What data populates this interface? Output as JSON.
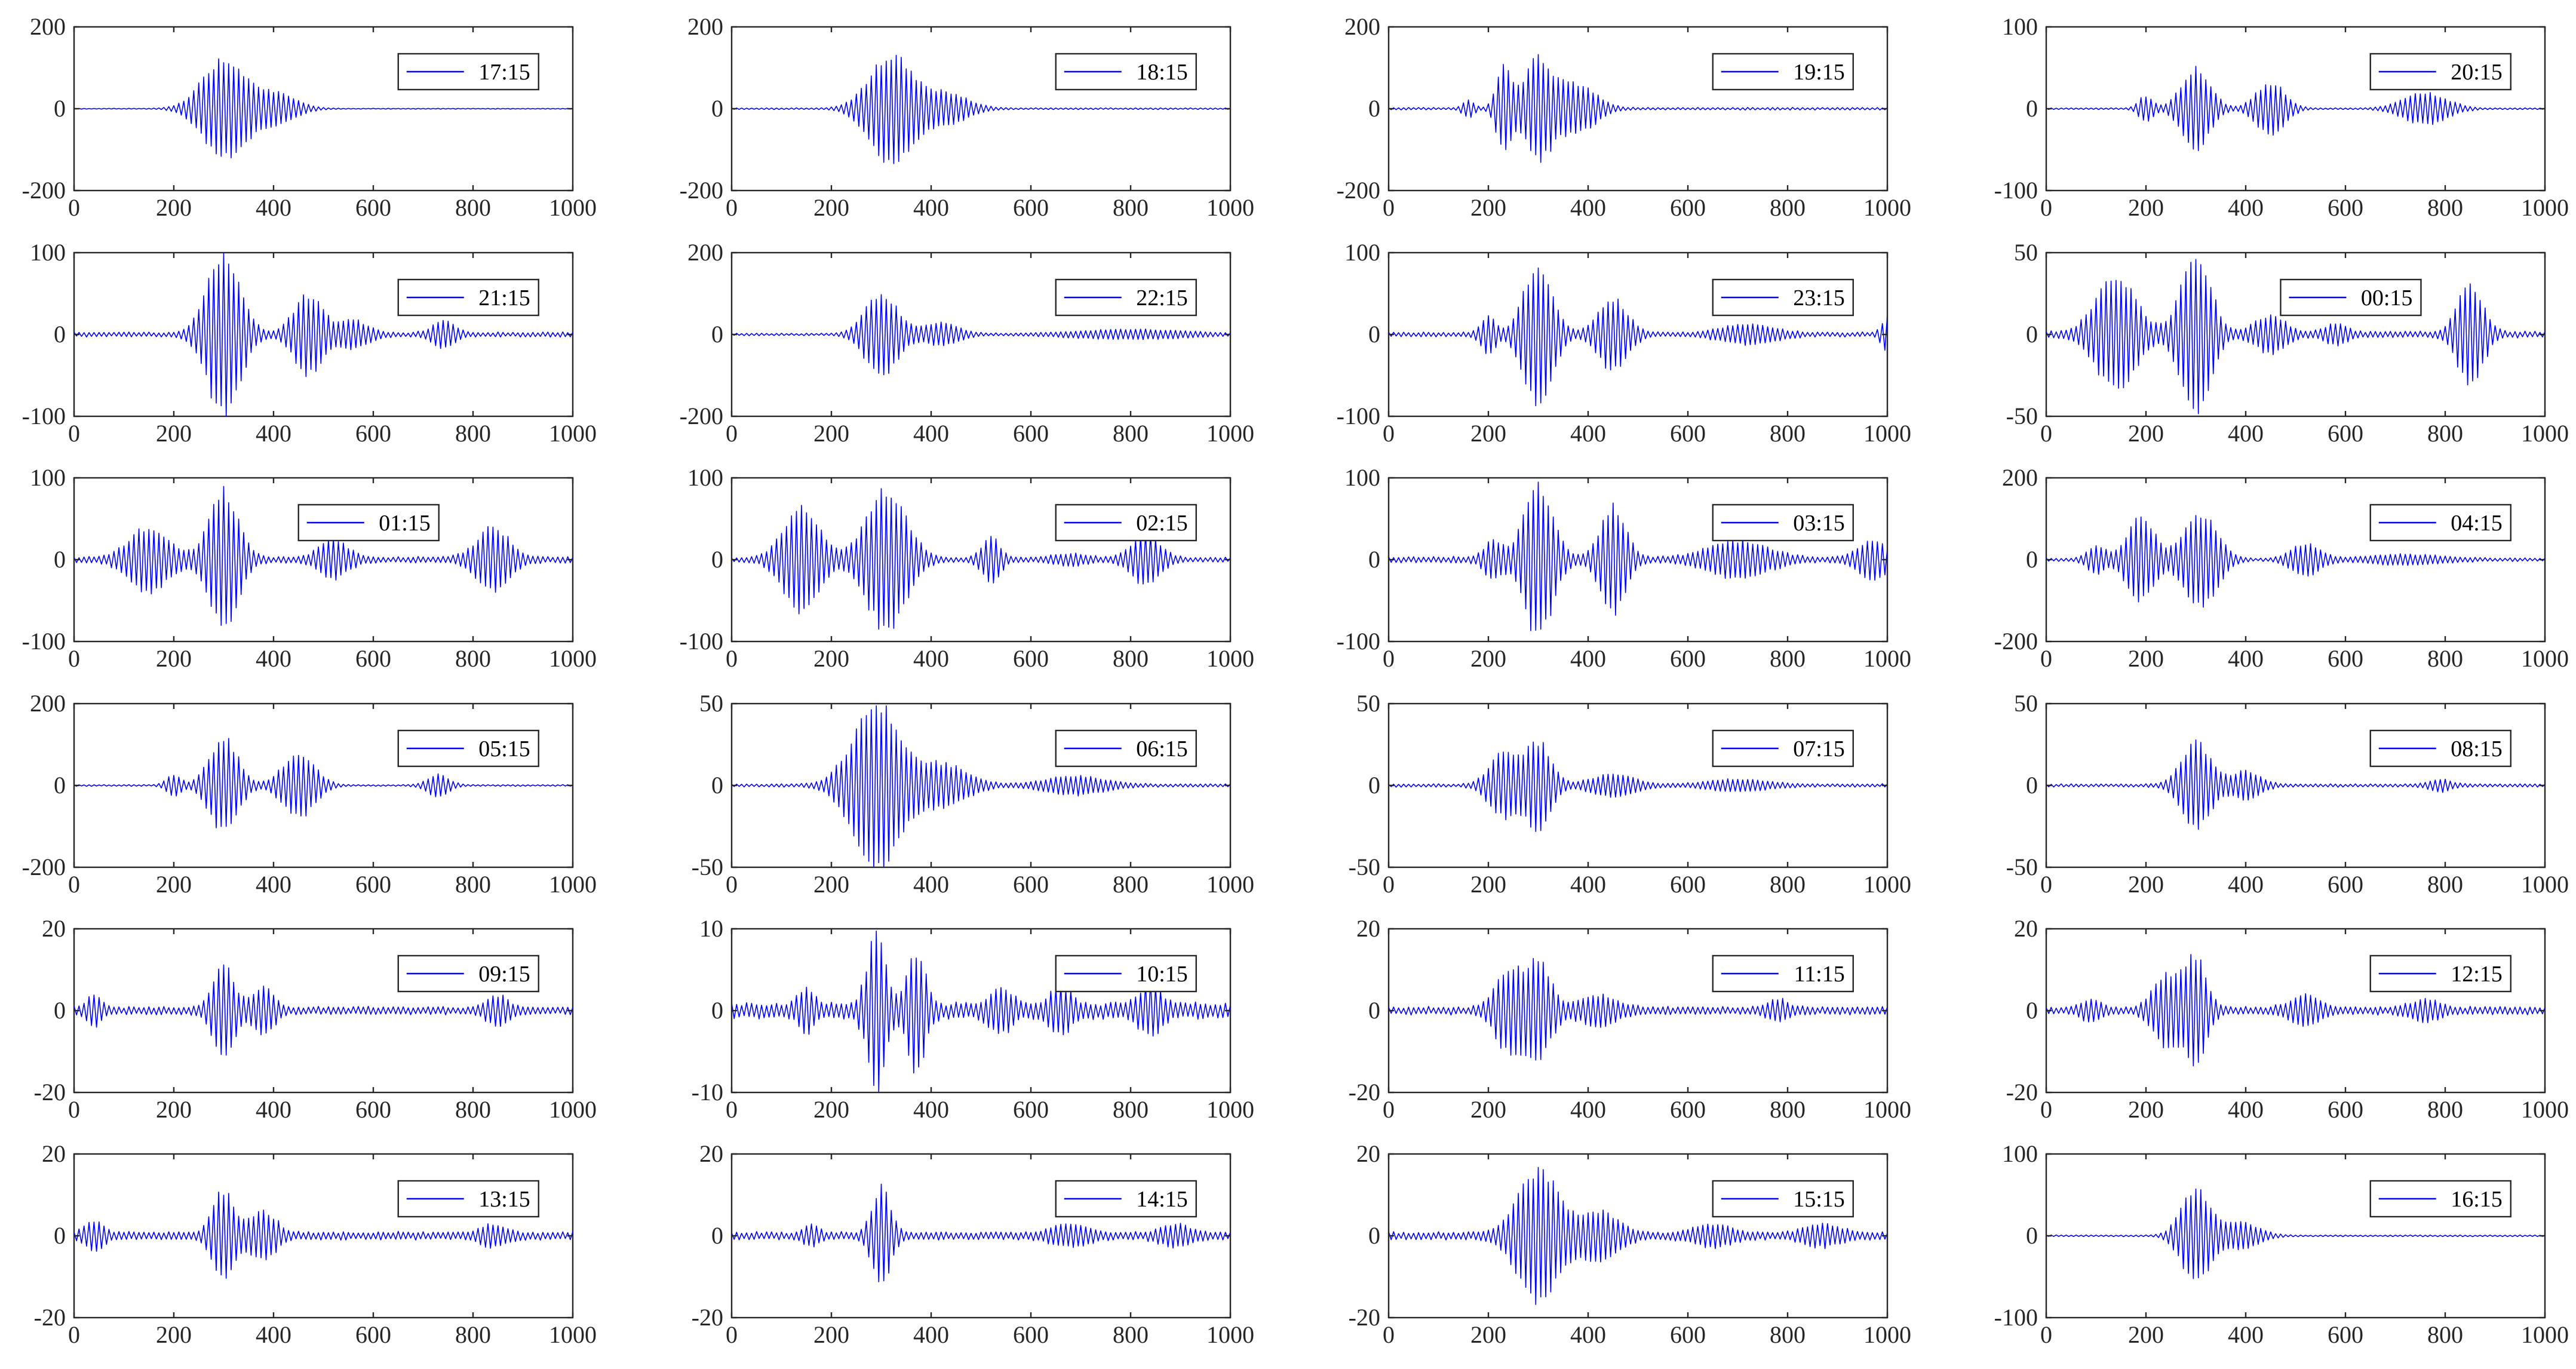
{
  "chart_data": {
    "type": "line",
    "grid": false,
    "legend_placement": "top-right",
    "series_color": "#0000ff",
    "xlim": [
      0,
      1000
    ],
    "xticks": [
      0,
      200,
      400,
      600,
      800,
      1000
    ],
    "carrier_period": 10,
    "panels": [
      {
        "label": "17:15",
        "ylim": [
          -200,
          200
        ],
        "yticks": [
          -200,
          0,
          200
        ],
        "legend_x": 0.65,
        "bursts": [
          {
            "center": 300,
            "width": 60,
            "amp": 115
          },
          {
            "center": 400,
            "width": 60,
            "amp": 35
          }
        ],
        "noise": 1
      },
      {
        "label": "18:15",
        "ylim": [
          -200,
          200
        ],
        "yticks": [
          -200,
          0,
          200
        ],
        "legend_x": 0.65,
        "bursts": [
          {
            "center": 320,
            "width": 60,
            "amp": 125
          },
          {
            "center": 430,
            "width": 60,
            "amp": 35
          }
        ],
        "noise": 2
      },
      {
        "label": "19:15",
        "ylim": [
          -200,
          200
        ],
        "yticks": [
          -200,
          0,
          200
        ],
        "legend_x": 0.65,
        "bursts": [
          {
            "center": 160,
            "width": 15,
            "amp": 20
          },
          {
            "center": 230,
            "width": 20,
            "amp": 95
          },
          {
            "center": 300,
            "width": 40,
            "amp": 115
          },
          {
            "center": 380,
            "width": 50,
            "amp": 55
          }
        ],
        "noise": 3
      },
      {
        "label": "20:15",
        "ylim": [
          -100,
          100
        ],
        "yticks": [
          -100,
          0,
          100
        ],
        "legend_x": 0.65,
        "bursts": [
          {
            "center": 200,
            "width": 20,
            "amp": 15
          },
          {
            "center": 300,
            "width": 40,
            "amp": 48
          },
          {
            "center": 450,
            "width": 40,
            "amp": 30
          },
          {
            "center": 760,
            "width": 60,
            "amp": 18
          }
        ],
        "noise": 1
      },
      {
        "label": "21:15",
        "ylim": [
          -100,
          100
        ],
        "yticks": [
          -100,
          0,
          100
        ],
        "legend_x": 0.65,
        "bursts": [
          {
            "center": 300,
            "width": 45,
            "amp": 95
          },
          {
            "center": 470,
            "width": 40,
            "amp": 45
          },
          {
            "center": 560,
            "width": 40,
            "amp": 15
          },
          {
            "center": 740,
            "width": 30,
            "amp": 15
          }
        ],
        "noise": 3
      },
      {
        "label": "22:15",
        "ylim": [
          -200,
          200
        ],
        "yticks": [
          -200,
          0,
          200
        ],
        "legend_x": 0.65,
        "bursts": [
          {
            "center": 300,
            "width": 45,
            "amp": 95
          },
          {
            "center": 420,
            "width": 50,
            "amp": 25
          },
          {
            "center": 800,
            "width": 150,
            "amp": 10
          }
        ],
        "noise": 3
      },
      {
        "label": "23:15",
        "ylim": [
          -100,
          100
        ],
        "yticks": [
          -100,
          0,
          100
        ],
        "legend_x": 0.65,
        "bursts": [
          {
            "center": 200,
            "width": 20,
            "amp": 20
          },
          {
            "center": 300,
            "width": 40,
            "amp": 82
          },
          {
            "center": 450,
            "width": 40,
            "amp": 40
          },
          {
            "center": 720,
            "width": 70,
            "amp": 10
          },
          {
            "center": 1000,
            "width": 15,
            "amp": 20
          }
        ],
        "noise": 3
      },
      {
        "label": "00:15",
        "ylim": [
          -50,
          50
        ],
        "yticks": [
          -50,
          0,
          50
        ],
        "legend_x": 0.47,
        "bursts": [
          {
            "center": 140,
            "width": 55,
            "amp": 32
          },
          {
            "center": 300,
            "width": 40,
            "amp": 48
          },
          {
            "center": 450,
            "width": 40,
            "amp": 10
          },
          {
            "center": 580,
            "width": 30,
            "amp": 5
          },
          {
            "center": 850,
            "width": 35,
            "amp": 28
          }
        ],
        "noise": 2
      },
      {
        "label": "01:15",
        "ylim": [
          -100,
          100
        ],
        "yticks": [
          -100,
          0,
          100
        ],
        "legend_x": 0.45,
        "bursts": [
          {
            "center": 150,
            "width": 55,
            "amp": 35
          },
          {
            "center": 300,
            "width": 40,
            "amp": 78
          },
          {
            "center": 520,
            "width": 40,
            "amp": 20
          },
          {
            "center": 840,
            "width": 45,
            "amp": 35
          }
        ],
        "noise": 4
      },
      {
        "label": "02:15",
        "ylim": [
          -100,
          100
        ],
        "yticks": [
          -100,
          0,
          100
        ],
        "legend_x": 0.65,
        "bursts": [
          {
            "center": 140,
            "width": 50,
            "amp": 60
          },
          {
            "center": 310,
            "width": 55,
            "amp": 82
          },
          {
            "center": 520,
            "width": 25,
            "amp": 25
          },
          {
            "center": 680,
            "width": 50,
            "amp": 5
          },
          {
            "center": 830,
            "width": 40,
            "amp": 28
          }
        ],
        "noise": 3
      },
      {
        "label": "03:15",
        "ylim": [
          -100,
          100
        ],
        "yticks": [
          -100,
          0,
          100
        ],
        "legend_x": 0.65,
        "bursts": [
          {
            "center": 210,
            "width": 25,
            "amp": 20
          },
          {
            "center": 300,
            "width": 40,
            "amp": 88
          },
          {
            "center": 450,
            "width": 35,
            "amp": 60
          },
          {
            "center": 700,
            "width": 80,
            "amp": 20
          },
          {
            "center": 970,
            "width": 40,
            "amp": 20
          }
        ],
        "noise": 4
      },
      {
        "label": "04:15",
        "ylim": [
          -200,
          200
        ],
        "yticks": [
          -200,
          0,
          200
        ],
        "legend_x": 0.65,
        "bursts": [
          {
            "center": 100,
            "width": 25,
            "amp": 30
          },
          {
            "center": 190,
            "width": 40,
            "amp": 95
          },
          {
            "center": 310,
            "width": 45,
            "amp": 110
          },
          {
            "center": 520,
            "width": 40,
            "amp": 35
          },
          {
            "center": 720,
            "width": 100,
            "amp": 10
          }
        ],
        "noise": 4
      },
      {
        "label": "05:15",
        "ylim": [
          -200,
          200
        ],
        "yticks": [
          -200,
          0,
          200
        ],
        "legend_x": 0.65,
        "bursts": [
          {
            "center": 200,
            "width": 20,
            "amp": 25
          },
          {
            "center": 300,
            "width": 40,
            "amp": 110
          },
          {
            "center": 450,
            "width": 45,
            "amp": 75
          },
          {
            "center": 730,
            "width": 30,
            "amp": 25
          }
        ],
        "noise": 2
      },
      {
        "label": "06:15",
        "ylim": [
          -50,
          50
        ],
        "yticks": [
          -50,
          0,
          50
        ],
        "legend_x": 0.65,
        "bursts": [
          {
            "center": 290,
            "width": 65,
            "amp": 47
          },
          {
            "center": 420,
            "width": 70,
            "amp": 12
          },
          {
            "center": 690,
            "width": 80,
            "amp": 5
          }
        ],
        "noise": 1
      },
      {
        "label": "07:15",
        "ylim": [
          -50,
          50
        ],
        "yticks": [
          -50,
          0,
          50
        ],
        "legend_x": 0.65,
        "bursts": [
          {
            "center": 230,
            "width": 40,
            "amp": 18
          },
          {
            "center": 300,
            "width": 35,
            "amp": 25
          },
          {
            "center": 450,
            "width": 60,
            "amp": 6
          },
          {
            "center": 700,
            "width": 80,
            "amp": 3
          }
        ],
        "noise": 1
      },
      {
        "label": "08:15",
        "ylim": [
          -50,
          50
        ],
        "yticks": [
          -50,
          0,
          50
        ],
        "legend_x": 0.65,
        "bursts": [
          {
            "center": 300,
            "width": 40,
            "amp": 25
          },
          {
            "center": 400,
            "width": 40,
            "amp": 8
          },
          {
            "center": 790,
            "width": 30,
            "amp": 3
          }
        ],
        "noise": 1
      },
      {
        "label": "09:15",
        "ylim": [
          -20,
          20
        ],
        "yticks": [
          -20,
          0,
          20
        ],
        "legend_x": 0.65,
        "bursts": [
          {
            "center": 40,
            "width": 20,
            "amp": 3
          },
          {
            "center": 300,
            "width": 30,
            "amp": 10
          },
          {
            "center": 380,
            "width": 30,
            "amp": 5
          },
          {
            "center": 850,
            "width": 30,
            "amp": 3
          }
        ],
        "noise": 1
      },
      {
        "label": "10:15",
        "ylim": [
          -10,
          10
        ],
        "yticks": [
          -10,
          0,
          10
        ],
        "legend_x": 0.65,
        "bursts": [
          {
            "center": 150,
            "width": 20,
            "amp": 2
          },
          {
            "center": 290,
            "width": 25,
            "amp": 8.5
          },
          {
            "center": 370,
            "width": 25,
            "amp": 6.5
          },
          {
            "center": 540,
            "width": 30,
            "amp": 2
          },
          {
            "center": 660,
            "width": 30,
            "amp": 2
          },
          {
            "center": 840,
            "width": 30,
            "amp": 2.5
          }
        ],
        "noise": 1
      },
      {
        "label": "11:15",
        "ylim": [
          -20,
          20
        ],
        "yticks": [
          -20,
          0,
          20
        ],
        "legend_x": 0.65,
        "bursts": [
          {
            "center": 240,
            "width": 35,
            "amp": 9
          },
          {
            "center": 300,
            "width": 35,
            "amp": 11
          },
          {
            "center": 420,
            "width": 50,
            "amp": 3
          },
          {
            "center": 780,
            "width": 30,
            "amp": 2
          }
        ],
        "noise": 1
      },
      {
        "label": "12:15",
        "ylim": [
          -20,
          20
        ],
        "yticks": [
          -20,
          0,
          20
        ],
        "legend_x": 0.65,
        "bursts": [
          {
            "center": 90,
            "width": 25,
            "amp": 2
          },
          {
            "center": 240,
            "width": 35,
            "amp": 8
          },
          {
            "center": 300,
            "width": 30,
            "amp": 12
          },
          {
            "center": 520,
            "width": 40,
            "amp": 3
          },
          {
            "center": 760,
            "width": 40,
            "amp": 2
          }
        ],
        "noise": 1
      },
      {
        "label": "13:15",
        "ylim": [
          -20,
          20
        ],
        "yticks": [
          -20,
          0,
          20
        ],
        "legend_x": 0.65,
        "bursts": [
          {
            "center": 40,
            "width": 25,
            "amp": 3
          },
          {
            "center": 300,
            "width": 30,
            "amp": 10
          },
          {
            "center": 380,
            "width": 35,
            "amp": 5
          },
          {
            "center": 840,
            "width": 35,
            "amp": 2
          }
        ],
        "noise": 1
      },
      {
        "label": "14:15",
        "ylim": [
          -20,
          20
        ],
        "yticks": [
          -20,
          0,
          20
        ],
        "legend_x": 0.65,
        "bursts": [
          {
            "center": 160,
            "width": 20,
            "amp": 2
          },
          {
            "center": 300,
            "width": 25,
            "amp": 11
          },
          {
            "center": 680,
            "width": 50,
            "amp": 2
          },
          {
            "center": 890,
            "width": 40,
            "amp": 2
          }
        ],
        "noise": 1
      },
      {
        "label": "15:15",
        "ylim": [
          -20,
          20
        ],
        "yticks": [
          -20,
          0,
          20
        ],
        "legend_x": 0.65,
        "bursts": [
          {
            "center": 300,
            "width": 55,
            "amp": 15
          },
          {
            "center": 420,
            "width": 55,
            "amp": 5
          },
          {
            "center": 650,
            "width": 50,
            "amp": 2
          },
          {
            "center": 870,
            "width": 50,
            "amp": 2
          }
        ],
        "noise": 1
      },
      {
        "label": "16:15",
        "ylim": [
          -100,
          100
        ],
        "yticks": [
          -100,
          0,
          100
        ],
        "legend_x": 0.65,
        "bursts": [
          {
            "center": 300,
            "width": 40,
            "amp": 55
          },
          {
            "center": 390,
            "width": 50,
            "amp": 15
          }
        ],
        "noise": 1
      }
    ]
  }
}
